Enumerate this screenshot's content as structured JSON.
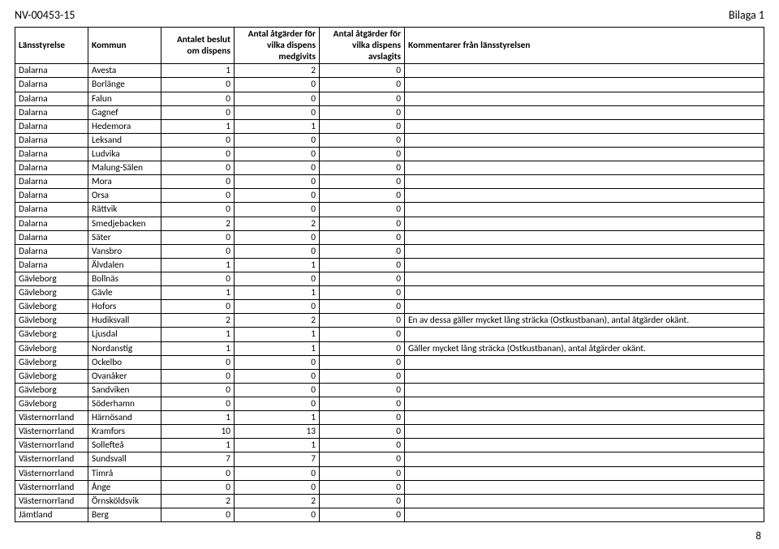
{
  "header": {
    "left": "NV-00453-15",
    "right": "Bilaga 1"
  },
  "page_number": "8",
  "table": {
    "columns": [
      "Länsstyrelse",
      "Kommun",
      "Antalet beslut om dispens",
      "Antal åtgärder för vilka dispens medgivits",
      "Antal åtgärder för vilka dispens avslagits",
      "Kommentarer från länsstyrelsen"
    ],
    "rows": [
      [
        "Dalarna",
        "Avesta",
        "1",
        "2",
        "0",
        ""
      ],
      [
        "Dalarna",
        "Borlänge",
        "0",
        "0",
        "0",
        ""
      ],
      [
        "Dalarna",
        "Falun",
        "0",
        "0",
        "0",
        ""
      ],
      [
        "Dalarna",
        "Gagnef",
        "0",
        "0",
        "0",
        ""
      ],
      [
        "Dalarna",
        "Hedemora",
        "1",
        "1",
        "0",
        ""
      ],
      [
        "Dalarna",
        "Leksand",
        "0",
        "0",
        "0",
        ""
      ],
      [
        "Dalarna",
        "Ludvika",
        "0",
        "0",
        "0",
        ""
      ],
      [
        "Dalarna",
        "Malung-Sälen",
        "0",
        "0",
        "0",
        ""
      ],
      [
        "Dalarna",
        "Mora",
        "0",
        "0",
        "0",
        ""
      ],
      [
        "Dalarna",
        "Orsa",
        "0",
        "0",
        "0",
        ""
      ],
      [
        "Dalarna",
        "Rättvik",
        "0",
        "0",
        "0",
        ""
      ],
      [
        "Dalarna",
        "Smedjebacken",
        "2",
        "2",
        "0",
        ""
      ],
      [
        "Dalarna",
        "Säter",
        "0",
        "0",
        "0",
        ""
      ],
      [
        "Dalarna",
        "Vansbro",
        "0",
        "0",
        "0",
        ""
      ],
      [
        "Dalarna",
        "Älvdalen",
        "1",
        "1",
        "0",
        ""
      ],
      [
        "Gävleborg",
        "Bollnäs",
        "0",
        "0",
        "0",
        ""
      ],
      [
        "Gävleborg",
        "Gävle",
        "1",
        "1",
        "0",
        ""
      ],
      [
        "Gävleborg",
        "Hofors",
        "0",
        "0",
        "0",
        ""
      ],
      [
        "Gävleborg",
        "Hudiksvall",
        "2",
        "2",
        "0",
        "En av dessa gäller mycket lång sträcka (Ostkustbanan), antal åtgärder okänt."
      ],
      [
        "Gävleborg",
        "Ljusdal",
        "1",
        "1",
        "0",
        ""
      ],
      [
        "Gävleborg",
        "Nordanstig",
        "1",
        "1",
        "0",
        "Gäller mycket lång sträcka (Ostkustbanan), antal åtgärder okänt."
      ],
      [
        "Gävleborg",
        "Ockelbo",
        "0",
        "0",
        "0",
        ""
      ],
      [
        "Gävleborg",
        "Ovanåker",
        "0",
        "0",
        "0",
        ""
      ],
      [
        "Gävleborg",
        "Sandviken",
        "0",
        "0",
        "0",
        ""
      ],
      [
        "Gävleborg",
        "Söderhamn",
        "0",
        "0",
        "0",
        ""
      ],
      [
        "Västernorrland",
        "Härnösand",
        "1",
        "1",
        "0",
        ""
      ],
      [
        "Västernorrland",
        "Kramfors",
        "10",
        "13",
        "0",
        ""
      ],
      [
        "Västernorrland",
        "Sollefteå",
        "1",
        "1",
        "0",
        ""
      ],
      [
        "Västernorrland",
        "Sundsvall",
        "7",
        "7",
        "0",
        ""
      ],
      [
        "Västernorrland",
        "Timrå",
        "0",
        "0",
        "0",
        ""
      ],
      [
        "Västernorrland",
        "Ånge",
        "0",
        "0",
        "0",
        ""
      ],
      [
        "Västernorrland",
        "Örnsköldsvik",
        "2",
        "2",
        "0",
        ""
      ],
      [
        "Jämtland",
        "Berg",
        "0",
        "0",
        "0",
        ""
      ]
    ]
  }
}
